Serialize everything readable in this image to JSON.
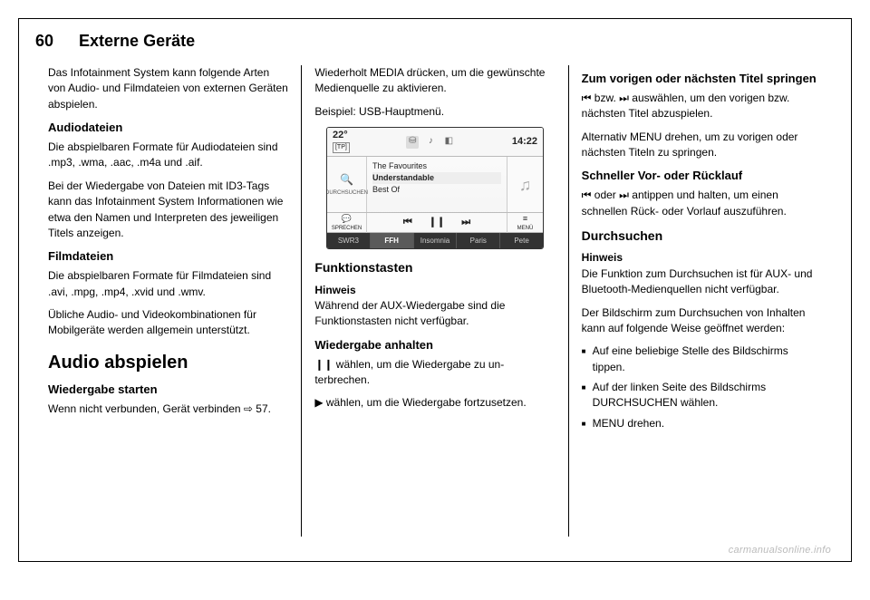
{
  "header": {
    "page_number": "60",
    "title": "Externe Geräte"
  },
  "col1": {
    "intro": "Das Infotainment System kann fol­gende Arten von Audio- und Filmda­teien von externen Geräten abspie­len.",
    "audio_head": "Audiodateien",
    "audio_p1": "Die abspielbaren Formate für Audio­dateien sind .mp3, .wma, .aac, .m4a und .aif.",
    "audio_p2": "Bei der Wiedergabe von Dateien mit ID3-Tags kann das Infotainment Sys­tem Informationen wie etwa den Na­men und Interpreten des jeweiligen Titels anzeigen.",
    "film_head": "Filmdateien",
    "film_p1": "Die abspielbaren Formate für Filmda­teien sind .avi, .mpg, .mp4, .xvid und .wmv.",
    "film_p2": "Übliche Audio- und Videokombinatio­nen für Mobilgeräte werden allgemein unterstützt.",
    "play_h2": "Audio abspielen",
    "start_head": "Wiedergabe starten",
    "start_p": "Wenn nicht verbunden, Gerät verbin­den ⇨ 57."
  },
  "col2": {
    "top_p": "Wiederholt MEDIA drücken, um die gewünschte Medienquelle zu aktivie­ren.",
    "example": "Beispiel: USB-Hauptmenü.",
    "func_h3": "Funktionstasten",
    "note_title": "Hinweis",
    "note_body": "Während der AUX-Wiedergabe sind die Funktionstasten nicht verfügbar.",
    "pause_head": "Wiedergabe anhalten",
    "pause_p1": "❙❙ wählen, um die Wiedergabe zu un­terbrechen.",
    "pause_p2": "▶ wählen, um die Wiedergabe fort­zusetzen."
  },
  "infoscreen": {
    "temp": "22°",
    "tp": "[TP]",
    "time": "14:22",
    "browse_label": "DURCHSUCHEN",
    "track1": "The Favourites",
    "track2": "Understandable",
    "track3": "Best Of",
    "speak_label": "SPRECHEN",
    "prev": "⏮",
    "pause": "❙❙",
    "next": "⏭",
    "menu_label": "MENÜ",
    "tab1": "SWR3",
    "tab2": "FFH",
    "tab3": "Insomnia",
    "tab4": "Paris",
    "tab5": "Pete"
  },
  "col3": {
    "skip_head": "Zum vorigen oder nächsten Titel springen",
    "skip_p1": "⏮ bzw. ⏭ auswählen, um den vori­gen bzw. nächsten Titel abzuspielen.",
    "skip_p2": "Alternativ MENU drehen, um zu vori­gen oder nächsten Titeln zu springen.",
    "ff_head": "Schneller Vor- oder Rücklauf",
    "ff_p": "⏮ oder ⏭ antippen und halten, um einen schnellen Rück- oder Vorlauf auszuführen.",
    "browse_h3": "Durchsuchen",
    "note_title": "Hinweis",
    "note_body": "Die Funktion zum Durchsuchen ist für AUX- und Bluetooth-Medienquel­len nicht verfügbar.",
    "browse_intro": "Der Bildschirm zum Durchsuchen von Inhalten kann auf folgende Weise ge­öffnet werden:",
    "b1": "Auf eine beliebige Stelle des Bild­schirms tippen.",
    "b2": "Auf der linken Seite des Bild­schirms DURCHSUCHEN wählen.",
    "b3": "MENU drehen."
  },
  "watermark": "carmanualsonline.info"
}
